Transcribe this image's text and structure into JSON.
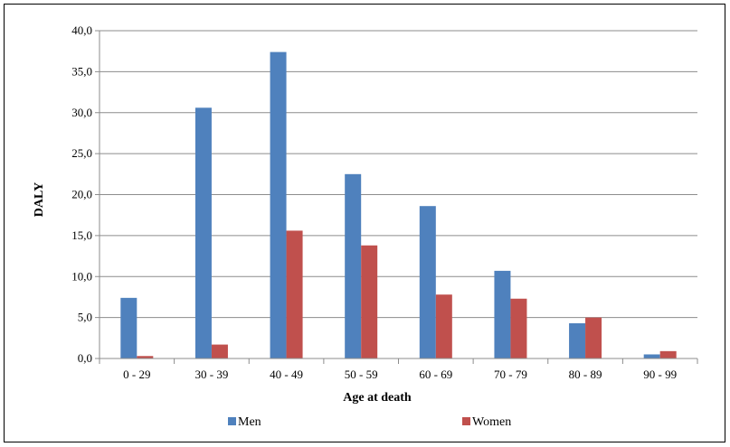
{
  "chart_data": {
    "type": "bar",
    "title": "",
    "xlabel": "Age at death",
    "ylabel": "DALY",
    "categories": [
      "0 - 29",
      "30 - 39",
      "40 - 49",
      "50 - 59",
      "60 - 69",
      "70 - 79",
      "80 - 89",
      "90 - 99"
    ],
    "series": [
      {
        "name": "Men",
        "color": "#4F81BD",
        "values": [
          7.4,
          30.6,
          37.4,
          22.5,
          18.6,
          10.7,
          4.3,
          0.5
        ]
      },
      {
        "name": "Women",
        "color": "#C0504D",
        "values": [
          0.3,
          1.7,
          15.6,
          13.8,
          7.8,
          7.3,
          5.0,
          0.9
        ]
      }
    ],
    "ylim": [
      0,
      40
    ],
    "yticks": [
      "0,0",
      "5,0",
      "10,0",
      "15,0",
      "20,0",
      "25,0",
      "30,0",
      "35,0",
      "40,0"
    ],
    "grid": true,
    "legend_position": "bottom"
  }
}
